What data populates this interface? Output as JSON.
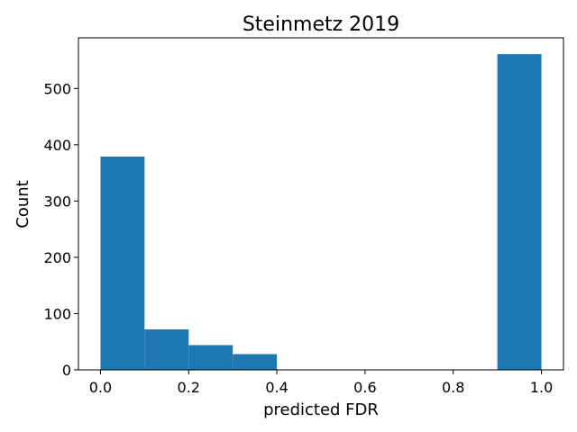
{
  "chart_data": {
    "type": "bar",
    "histogram": true,
    "title": "Steinmetz 2019",
    "xlabel": "predicted FDR",
    "ylabel": "Count",
    "bins": [
      {
        "start": 0.0,
        "end": 0.1,
        "count": 379
      },
      {
        "start": 0.1,
        "end": 0.2,
        "count": 72
      },
      {
        "start": 0.2,
        "end": 0.3,
        "count": 44
      },
      {
        "start": 0.3,
        "end": 0.4,
        "count": 28
      },
      {
        "start": 0.4,
        "end": 0.5,
        "count": 0
      },
      {
        "start": 0.5,
        "end": 0.6,
        "count": 0
      },
      {
        "start": 0.6,
        "end": 0.7,
        "count": 0
      },
      {
        "start": 0.7,
        "end": 0.8,
        "count": 0
      },
      {
        "start": 0.8,
        "end": 0.9,
        "count": 0
      },
      {
        "start": 0.9,
        "end": 1.0,
        "count": 561
      }
    ],
    "xlim": [
      -0.05,
      1.05
    ],
    "ylim": [
      0,
      590
    ],
    "xticks": [
      0.0,
      0.2,
      0.4,
      0.6,
      0.8,
      1.0
    ],
    "xtick_labels": [
      "0.0",
      "0.2",
      "0.4",
      "0.6",
      "0.8",
      "1.0"
    ],
    "yticks": [
      0,
      100,
      200,
      300,
      400,
      500
    ],
    "ytick_labels": [
      "0",
      "100",
      "200",
      "300",
      "400",
      "500"
    ],
    "grid": false,
    "bar_color": "#1f77b4"
  }
}
